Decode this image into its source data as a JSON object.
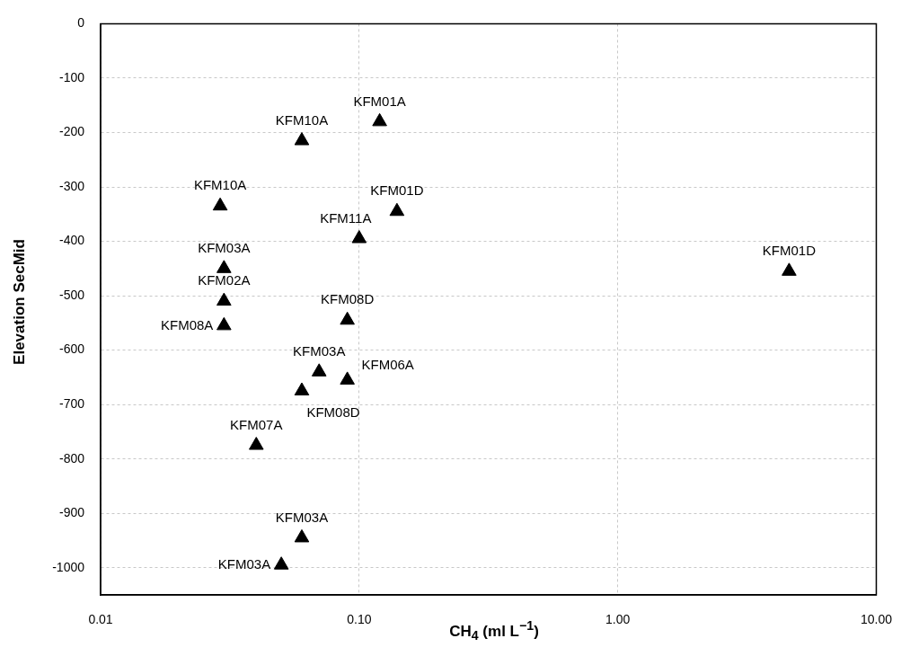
{
  "chart_data": {
    "type": "scatter",
    "xlabel": "CH$_{4}$ (ml L$^{−1}$)",
    "ylabel": "Elevation SecMid",
    "log": "x",
    "grid": true,
    "legend": false,
    "marker": "triangle",
    "xlim": [
      0.01,
      10
    ],
    "xticks": [
      0.01,
      {
        "value": 0.1,
        "label": "0.10"
      },
      {
        "value": 1,
        "label": "1.00"
      },
      {
        "value": 10,
        "label": "10.00"
      }
    ],
    "ylim": [
      -1050,
      0
    ],
    "yticks": [
      0,
      -100,
      -200,
      -300,
      -400,
      -500,
      -600,
      -700,
      -800,
      -900,
      -1000
    ],
    "series": [
      {
        "color": "#000000",
        "x": [
          0.12,
          0.06,
          0.029,
          0.14,
          0.1,
          0.03,
          0.03,
          0.03,
          0.09,
          0.07,
          0.09,
          0.06,
          0.04,
          0.06,
          0.05,
          4.6
        ],
        "values": [
          -180,
          -215,
          -335,
          -345,
          -395,
          -450,
          -510,
          -555,
          -545,
          -640,
          -655,
          -675,
          -775,
          -945,
          -995,
          -455
        ]
      }
    ],
    "annotations": [
      {
        "text": "KFM01A",
        "x": 0.12,
        "y": -180
      },
      {
        "text": "KFM10A",
        "x": 0.06,
        "y": -215
      },
      {
        "text": "KFM10A",
        "x": 0.029,
        "y": -335
      },
      {
        "text": "KFM01D",
        "x": 0.14,
        "y": -345
      },
      {
        "text": "KFM11A",
        "x": 0.1,
        "y": -395
      },
      {
        "text": "KFM03A",
        "x": 0.03,
        "y": -450
      },
      {
        "text": "KFM02A",
        "x": 0.03,
        "y": -510
      },
      {
        "text": "KFM08A",
        "x": 0.03,
        "y": -555
      },
      {
        "text": "KFM08D",
        "x": 0.09,
        "y": -545
      },
      {
        "text": "KFM03A",
        "x": 0.07,
        "y": -640
      },
      {
        "text": "KFM06A",
        "x": 0.09,
        "y": -655
      },
      {
        "text": "KFM08D",
        "x": 0.06,
        "y": -675
      },
      {
        "text": "KFM07A",
        "x": 0.04,
        "y": -775
      },
      {
        "text": "KFM03A",
        "x": 0.06,
        "y": -945
      },
      {
        "text": "KFM03A",
        "x": 0.05,
        "y": -995
      },
      {
        "text": "KFM01D",
        "x": 4.6,
        "y": -455
      }
    ]
  }
}
